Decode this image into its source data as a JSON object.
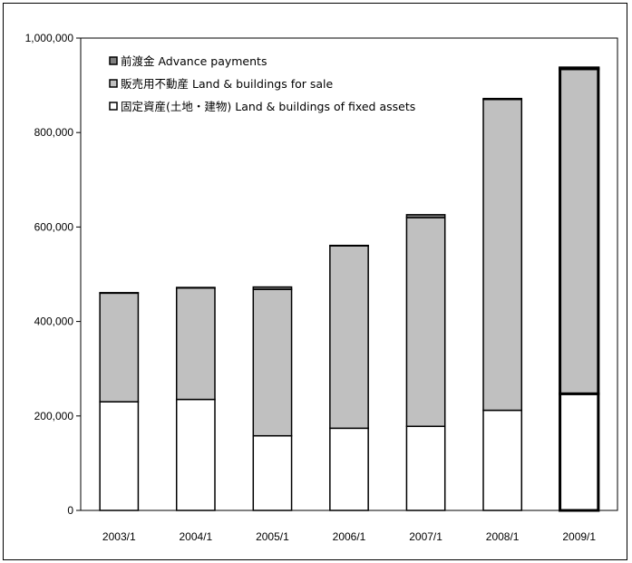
{
  "chart_data": {
    "type": "bar",
    "stacked": true,
    "categories": [
      "2003/1",
      "2004/1",
      "2005/1",
      "2006/1",
      "2007/1",
      "2008/1",
      "2009/1"
    ],
    "series": [
      {
        "name": "固定資産(土地・建物) Land & buildings of fixed assets",
        "color": "#ffffff",
        "values": [
          230000,
          235000,
          158000,
          174000,
          178000,
          212000,
          247000
        ]
      },
      {
        "name": "販売用不動産 Land & buildings for sale",
        "color": "#c0c0c0",
        "values": [
          230000,
          236000,
          310000,
          386000,
          442000,
          658000,
          688000
        ]
      },
      {
        "name": "前渡金 Advance payments",
        "color": "#808080",
        "values": [
          1000,
          1000,
          5000,
          1000,
          6000,
          2000,
          2000
        ]
      }
    ],
    "yticks": [
      "0",
      "200,000",
      "400,000",
      "600,000",
      "800,000",
      "1,000,000"
    ],
    "ylim": [
      0,
      1000000
    ],
    "grid": false,
    "legend_position": "top-left"
  }
}
